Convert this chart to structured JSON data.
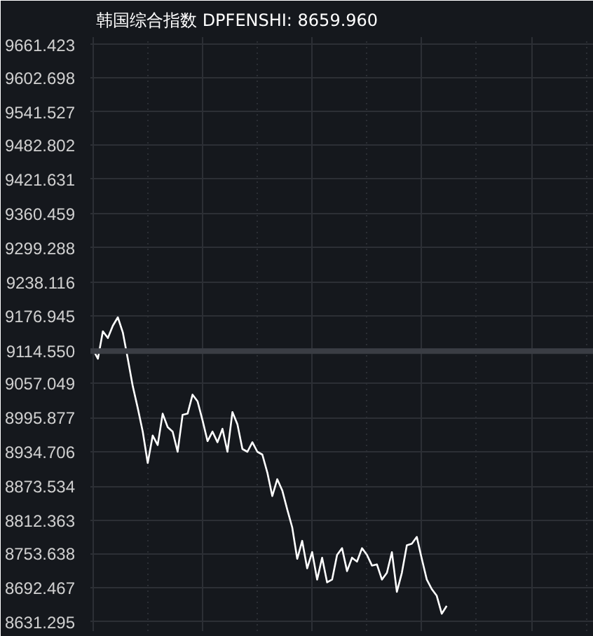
{
  "chart_data": {
    "type": "line",
    "title": "韩国综合指数 DPFENSHI: 8659.960",
    "categories": [
      null,
      null,
      null,
      null,
      null,
      null,
      null,
      null,
      null,
      null,
      null,
      null,
      null,
      null,
      null,
      null,
      null,
      null,
      null,
      null,
      null,
      null,
      null,
      null,
      null,
      null,
      null,
      null,
      null,
      null,
      null,
      null,
      null,
      null,
      null,
      null,
      null,
      null,
      null,
      null,
      null,
      null,
      null,
      null,
      null,
      null,
      null,
      null,
      null,
      null,
      null,
      null,
      null,
      null,
      null,
      null,
      null,
      null,
      null,
      null,
      null,
      null,
      null,
      null,
      null,
      null,
      null,
      null,
      null,
      null,
      null,
      null,
      null,
      null,
      null,
      null,
      null,
      null,
      null,
      null,
      null,
      null,
      null,
      null,
      null,
      null,
      null,
      null,
      null,
      null,
      null,
      null,
      null,
      null,
      null,
      null,
      null,
      null,
      null,
      null,
      null
    ],
    "series": [
      {
        "color": "#ffffff",
        "values": [
          9118,
          9101,
          9150,
          9138,
          9160,
          9175,
          9148,
          9101,
          9052,
          9013,
          8971,
          8915,
          8964,
          8947,
          9003,
          8979,
          8971,
          8935,
          9001,
          9003,
          9037,
          9025,
          8991,
          8954,
          8971,
          8952,
          8976,
          8935,
          9006,
          8984,
          8940,
          8935,
          8952,
          8935,
          8930,
          8898,
          8856,
          8886,
          8866,
          8832,
          8800,
          8744,
          8776,
          8727,
          8756,
          8707,
          8746,
          8702,
          8707,
          8751,
          8763,
          8722,
          8746,
          8739,
          8763,
          8751,
          8732,
          8734,
          8707,
          8719,
          8756,
          8685,
          8719,
          8768,
          8771,
          8783,
          8744,
          8707,
          8690,
          8678,
          8646,
          8659.96,
          null,
          null,
          null,
          null,
          null,
          null,
          null,
          null,
          null,
          null,
          null,
          null,
          null,
          null,
          null,
          null,
          null,
          null,
          null,
          null,
          null,
          null,
          null,
          null,
          null,
          null,
          null,
          null,
          null
        ]
      }
    ],
    "ylim": [
      8615,
      9675
    ],
    "yticks": [
      9661.423,
      9602.698,
      9541.527,
      9482.802,
      9421.631,
      9360.459,
      9299.288,
      9238.116,
      9176.945,
      {
        "value": 9114.55,
        "label": "9114.550"
      },
      9057.049,
      8995.877,
      8934.706,
      8873.534,
      8812.363,
      8753.638,
      8692.467,
      8631.295
    ],
    "ref_lines": [
      {
        "axis": "y",
        "value": 9114.55,
        "color": "#3a3d44"
      }
    ],
    "grid": true,
    "tick_labels": "y"
  }
}
